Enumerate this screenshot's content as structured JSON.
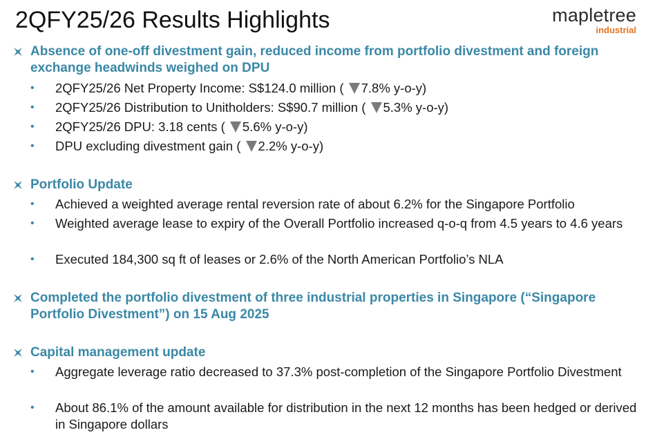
{
  "title": "2QFY25/26 Results Highlights",
  "logo": {
    "main": "mapletree",
    "sub": "industrial"
  },
  "colors": {
    "accent": "#3a88a6",
    "logo_orange": "#e8731e",
    "down_arrow": "#7a7a7a"
  },
  "sections": [
    {
      "heading": "Absence of one-off divestment gain, reduced income from portfolio divestment and foreign exchange headwinds weighed on DPU",
      "items": [
        {
          "pre": "2QFY25/26 Net Property Income: S$124.0 million ( ",
          "change": "7.8% y-o-y)",
          "icon": "down-triangle-icon"
        },
        {
          "pre": "2QFY25/26 Distribution to Unitholders: S$90.7 million ( ",
          "change": "5.3% y-o-y)",
          "icon": "down-triangle-icon"
        },
        {
          "pre": "2QFY25/26 DPU: 3.18 cents ( ",
          "change": "5.6% y-o-y)",
          "icon": "down-triangle-icon"
        },
        {
          "pre": "DPU excluding divestment gain ( ",
          "change": "2.2% y-o-y)",
          "icon": "down-triangle-icon"
        }
      ]
    },
    {
      "heading": "Portfolio Update",
      "items": [
        {
          "text": "Achieved a weighted average rental reversion rate of about 6.2% for the Singapore Portfolio"
        },
        {
          "text": "Weighted average lease to expiry of the Overall Portfolio increased q-o-q from 4.5 years to 4.6 years"
        },
        {
          "text": "Executed 184,300 sq ft of leases or 2.6% of the North American Portfolio’s NLA"
        }
      ]
    },
    {
      "heading": "Completed the portfolio divestment of three industrial properties in Singapore (“Singapore Portfolio Divestment”) on 15 Aug 2025",
      "items": []
    },
    {
      "heading": "Capital management update",
      "items": [
        {
          "text": "Aggregate leverage ratio decreased to 37.3% post-completion of the Singapore Portfolio Divestment"
        },
        {
          "text": "About 86.1% of the amount available for distribution in the next 12 months has been hedged or derived in Singapore dollars"
        }
      ]
    }
  ]
}
